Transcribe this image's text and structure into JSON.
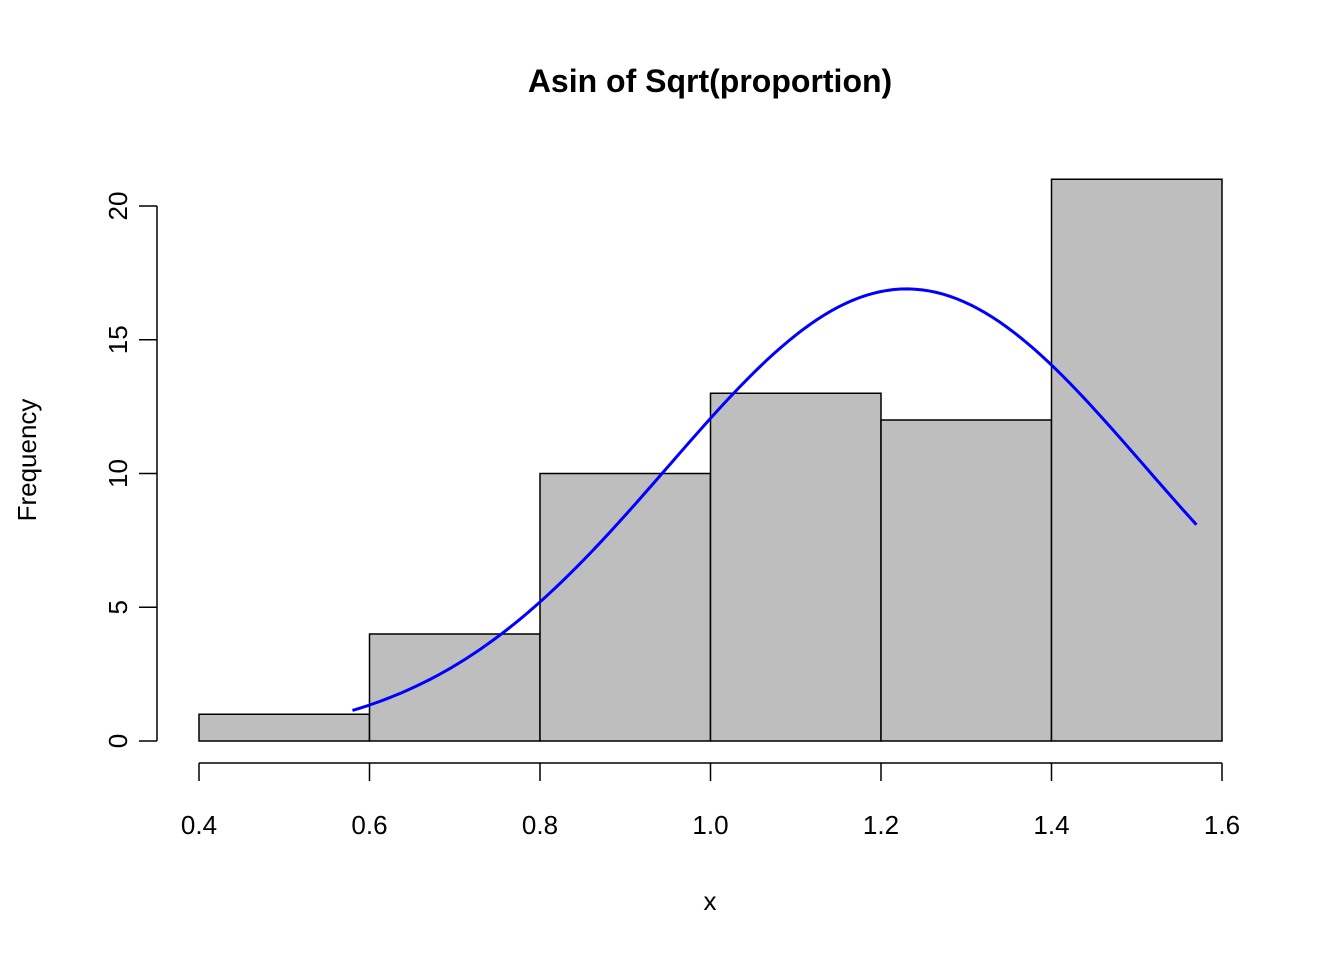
{
  "chart_data": {
    "type": "bar",
    "title": "Asin of Sqrt(proportion)",
    "xlabel": "x",
    "ylabel": "Frequency",
    "bins": [
      {
        "start": 0.4,
        "end": 0.6,
        "count": 1
      },
      {
        "start": 0.6,
        "end": 0.8,
        "count": 4
      },
      {
        "start": 0.8,
        "end": 1.0,
        "count": 10
      },
      {
        "start": 1.0,
        "end": 1.2,
        "count": 13
      },
      {
        "start": 1.2,
        "end": 1.4,
        "count": 12
      },
      {
        "start": 1.4,
        "end": 1.6,
        "count": 21
      }
    ],
    "xlim": [
      0.4,
      1.6
    ],
    "ylim": [
      0,
      21
    ],
    "x_ticks": [
      {
        "value": 0.4,
        "label": "0.4"
      },
      {
        "value": 0.6,
        "label": "0.6"
      },
      {
        "value": 0.8,
        "label": "0.8"
      },
      {
        "value": 1.0,
        "label": "1.0"
      },
      {
        "value": 1.2,
        "label": "1.2"
      },
      {
        "value": 1.4,
        "label": "1.4"
      },
      {
        "value": 1.6,
        "label": "1.6"
      }
    ],
    "y_ticks": [
      {
        "value": 0,
        "label": "0"
      },
      {
        "value": 5,
        "label": "5"
      },
      {
        "value": 10,
        "label": "10"
      },
      {
        "value": 15,
        "label": "15"
      },
      {
        "value": 20,
        "label": "20"
      }
    ],
    "bar_fill": "#bebebe",
    "bar_stroke": "#000000",
    "density_curve": {
      "color": "#0000ff",
      "mean": 1.23,
      "sd": 0.28,
      "peak": 16.9,
      "x_range": [
        0.58,
        1.57
      ]
    },
    "grid": false,
    "legend": "none"
  }
}
